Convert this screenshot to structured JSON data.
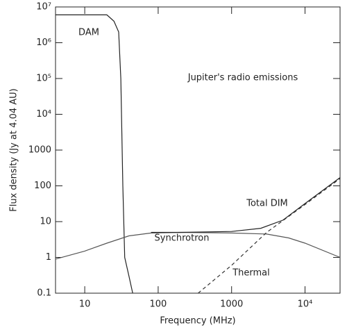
{
  "chart_data": {
    "type": "line",
    "xlabel": "Frequency (MHz)",
    "ylabel": "Flux density (Jy at 4.04 AU)",
    "log_x": true,
    "log_y": true,
    "xlim": [
      4,
      30000
    ],
    "ylim": [
      0.1,
      10000000
    ],
    "xticks": [
      10,
      100,
      1000,
      {
        "value": 10000,
        "label": "10⁴"
      }
    ],
    "yticks": [
      0.1,
      1,
      10,
      100,
      1000,
      {
        "value": 10000,
        "label": "10⁴"
      },
      {
        "value": 100000,
        "label": "10⁵"
      },
      {
        "value": 1000000,
        "label": "10⁶"
      },
      {
        "value": 10000000,
        "label": "10⁷"
      }
    ],
    "annotations": [
      "DAM",
      "Jupiter's radio emissions",
      "Total DIM",
      "Synchrotron",
      "Thermal"
    ],
    "series": [
      {
        "color": "#222222",
        "style": "solid",
        "x": [
          4,
          20,
          25,
          29,
          31,
          33,
          35,
          40,
          45
        ],
        "values": [
          6000000,
          6000000,
          4000000,
          2000000,
          100000,
          100,
          1,
          0.3,
          0.1
        ]
      },
      {
        "color": "#555555",
        "style": "solid",
        "x": [
          4,
          10,
          20,
          40,
          80,
          200,
          1000,
          3000,
          6000,
          10000,
          30000
        ],
        "values": [
          0.9,
          1.5,
          2.5,
          4,
          4.8,
          5,
          4.8,
          4.5,
          3.5,
          2.5,
          1
        ]
      },
      {
        "color": "#333333",
        "style": "dashed",
        "x": [
          350,
          1000,
          3000,
          10000,
          30000
        ],
        "values": [
          0.1,
          0.6,
          5,
          30,
          160
        ]
      },
      {
        "color": "#222222",
        "style": "solid",
        "x": [
          80,
          200,
          1000,
          2500,
          5000,
          10000,
          30000
        ],
        "values": [
          5,
          5,
          5.3,
          6.5,
          11,
          32,
          170
        ]
      }
    ]
  }
}
